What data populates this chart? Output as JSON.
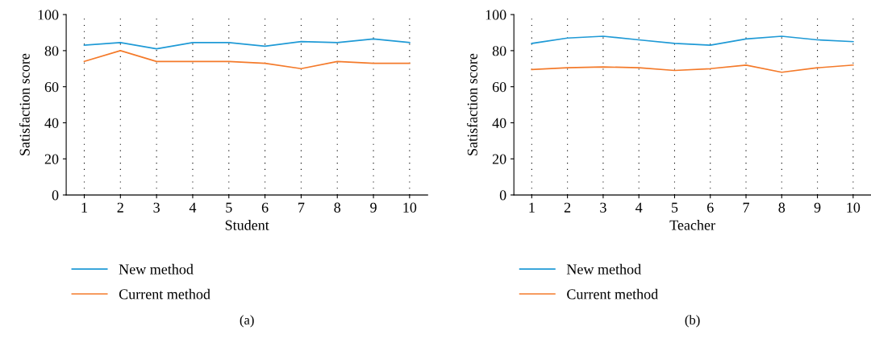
{
  "chart_data": [
    {
      "type": "line",
      "xlabel": "Student",
      "ylabel": "Satisfaction score",
      "categories": [
        "1",
        "2",
        "3",
        "4",
        "5",
        "6",
        "7",
        "8",
        "9",
        "10"
      ],
      "ylim": [
        0,
        100
      ],
      "yticks": [
        0,
        20,
        40,
        60,
        80,
        100
      ],
      "grid": "x",
      "legend": "bottom",
      "annotations": [
        "(a)"
      ],
      "series": [
        {
          "name": "New method",
          "color": "#1f9ad6",
          "values": [
            83,
            84.5,
            81,
            84.5,
            84.5,
            82.5,
            85,
            84.5,
            86.5,
            84.5
          ]
        },
        {
          "name": "Current method",
          "color": "#f47a2a",
          "values": [
            74,
            80,
            74,
            74,
            74,
            73,
            70,
            74,
            73,
            73
          ]
        }
      ]
    },
    {
      "type": "line",
      "xlabel": "Teacher",
      "ylabel": "Satisfaction score",
      "categories": [
        "1",
        "2",
        "3",
        "4",
        "5",
        "6",
        "7",
        "8",
        "9",
        "10"
      ],
      "ylim": [
        0,
        100
      ],
      "yticks": [
        0,
        20,
        40,
        60,
        80,
        100
      ],
      "grid": "x",
      "legend": "bottom",
      "annotations": [
        "(b)"
      ],
      "series": [
        {
          "name": "New method",
          "color": "#1f9ad6",
          "values": [
            84,
            87,
            88,
            86,
            84,
            83,
            86.5,
            88,
            86,
            85
          ]
        },
        {
          "name": "Current method",
          "color": "#f47a2a",
          "values": [
            69.5,
            70.5,
            71,
            70.5,
            69,
            70,
            72,
            68,
            70.5,
            72
          ]
        }
      ]
    }
  ]
}
